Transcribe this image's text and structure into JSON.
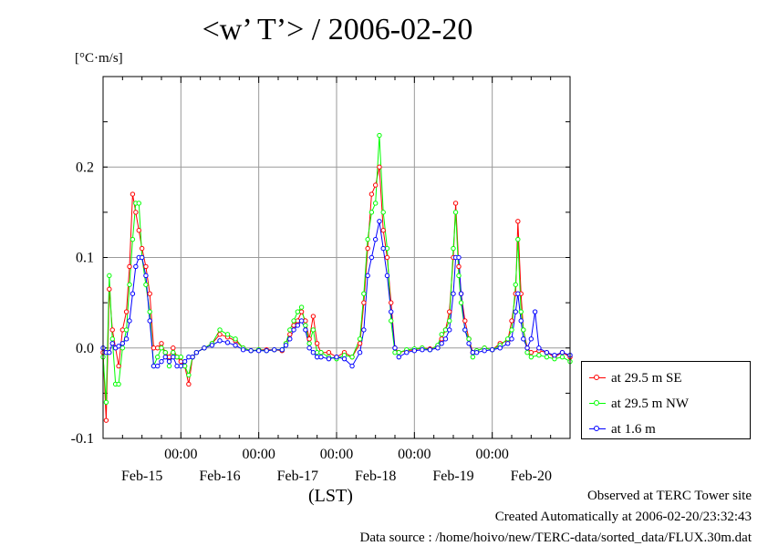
{
  "chart_data": {
    "type": "line",
    "title": "<w’ T’> / 2006-02-20",
    "ylabel": "[°C·m/s]",
    "xlabel": "(LST)",
    "ylim": [
      -0.1,
      0.3
    ],
    "yticks": [
      -0.1,
      0.0,
      0.1,
      0.2
    ],
    "ytick_labels": [
      "-0.1",
      "0.0",
      "0.1",
      "0.2"
    ],
    "xlim_days": [
      0,
      6
    ],
    "xticks_days": [
      1,
      2,
      3,
      4,
      5
    ],
    "xtick_time_labels": [
      "00:00",
      "00:00",
      "00:00",
      "00:00",
      "00:00"
    ],
    "xtick_date_labels": [
      "Feb-15",
      "Feb-16",
      "Feb-17",
      "Feb-18",
      "Feb-19",
      "Feb-20"
    ],
    "grid": true,
    "legend_position": "right",
    "series": [
      {
        "name": "at 29.5 m SE",
        "color": "#ff0000",
        "points": [
          [
            0.0,
            -0.005
          ],
          [
            0.04,
            -0.08
          ],
          [
            0.08,
            0.065
          ],
          [
            0.12,
            0.02
          ],
          [
            0.16,
            0.0
          ],
          [
            0.2,
            -0.02
          ],
          [
            0.25,
            0.02
          ],
          [
            0.3,
            0.04
          ],
          [
            0.34,
            0.09
          ],
          [
            0.38,
            0.17
          ],
          [
            0.42,
            0.15
          ],
          [
            0.46,
            0.13
          ],
          [
            0.5,
            0.11
          ],
          [
            0.55,
            0.09
          ],
          [
            0.6,
            0.06
          ],
          [
            0.65,
            0.0
          ],
          [
            0.7,
            0.0
          ],
          [
            0.75,
            0.005
          ],
          [
            0.8,
            -0.005
          ],
          [
            0.85,
            -0.01
          ],
          [
            0.9,
            0.0
          ],
          [
            0.95,
            -0.01
          ],
          [
            1.0,
            -0.015
          ],
          [
            1.05,
            -0.02
          ],
          [
            1.1,
            -0.04
          ],
          [
            1.15,
            -0.01
          ],
          [
            1.2,
            -0.005
          ],
          [
            1.3,
            0.0
          ],
          [
            1.4,
            0.005
          ],
          [
            1.5,
            0.015
          ],
          [
            1.6,
            0.012
          ],
          [
            1.7,
            0.008
          ],
          [
            1.8,
            0.0
          ],
          [
            1.9,
            -0.003
          ],
          [
            2.0,
            -0.002
          ],
          [
            2.1,
            -0.002
          ],
          [
            2.2,
            -0.002
          ],
          [
            2.3,
            -0.003
          ],
          [
            2.35,
            0.005
          ],
          [
            2.4,
            0.015
          ],
          [
            2.45,
            0.025
          ],
          [
            2.5,
            0.03
          ],
          [
            2.55,
            0.04
          ],
          [
            2.6,
            0.03
          ],
          [
            2.65,
            0.01
          ],
          [
            2.7,
            0.035
          ],
          [
            2.75,
            0.005
          ],
          [
            2.8,
            -0.005
          ],
          [
            2.9,
            -0.005
          ],
          [
            3.0,
            -0.01
          ],
          [
            3.1,
            -0.005
          ],
          [
            3.2,
            -0.01
          ],
          [
            3.3,
            0.005
          ],
          [
            3.35,
            0.05
          ],
          [
            3.4,
            0.11
          ],
          [
            3.45,
            0.17
          ],
          [
            3.5,
            0.18
          ],
          [
            3.55,
            0.2
          ],
          [
            3.6,
            0.13
          ],
          [
            3.65,
            0.1
          ],
          [
            3.7,
            0.05
          ],
          [
            3.75,
            0.0
          ],
          [
            3.8,
            -0.005
          ],
          [
            3.9,
            -0.003
          ],
          [
            4.0,
            -0.002
          ],
          [
            4.1,
            0.0
          ],
          [
            4.2,
            -0.001
          ],
          [
            4.3,
            0.002
          ],
          [
            4.35,
            0.01
          ],
          [
            4.4,
            0.02
          ],
          [
            4.45,
            0.04
          ],
          [
            4.5,
            0.1
          ],
          [
            4.53,
            0.16
          ],
          [
            4.57,
            0.09
          ],
          [
            4.6,
            0.06
          ],
          [
            4.65,
            0.03
          ],
          [
            4.7,
            0.01
          ],
          [
            4.75,
            -0.005
          ],
          [
            4.8,
            -0.003
          ],
          [
            4.9,
            0.0
          ],
          [
            5.0,
            -0.002
          ],
          [
            5.1,
            0.005
          ],
          [
            5.2,
            0.008
          ],
          [
            5.25,
            0.03
          ],
          [
            5.3,
            0.06
          ],
          [
            5.33,
            0.14
          ],
          [
            5.37,
            0.06
          ],
          [
            5.4,
            0.02
          ],
          [
            5.45,
            0.0
          ],
          [
            5.5,
            -0.005
          ],
          [
            5.6,
            -0.003
          ],
          [
            5.7,
            -0.005
          ],
          [
            5.8,
            -0.01
          ],
          [
            5.9,
            -0.005
          ],
          [
            6.0,
            -0.01
          ]
        ]
      },
      {
        "name": "at 29.5 m NW",
        "color": "#00ff00",
        "points": [
          [
            0.0,
            -0.01
          ],
          [
            0.04,
            -0.06
          ],
          [
            0.08,
            0.08
          ],
          [
            0.12,
            0.01
          ],
          [
            0.16,
            -0.04
          ],
          [
            0.2,
            -0.04
          ],
          [
            0.25,
            0.0
          ],
          [
            0.3,
            0.02
          ],
          [
            0.34,
            0.07
          ],
          [
            0.38,
            0.12
          ],
          [
            0.42,
            0.16
          ],
          [
            0.46,
            0.16
          ],
          [
            0.5,
            0.1
          ],
          [
            0.55,
            0.07
          ],
          [
            0.6,
            0.04
          ],
          [
            0.65,
            -0.02
          ],
          [
            0.7,
            -0.01
          ],
          [
            0.75,
            0.0
          ],
          [
            0.8,
            -0.005
          ],
          [
            0.85,
            -0.02
          ],
          [
            0.9,
            -0.005
          ],
          [
            0.95,
            -0.01
          ],
          [
            1.0,
            -0.01
          ],
          [
            1.05,
            -0.02
          ],
          [
            1.1,
            -0.03
          ],
          [
            1.15,
            -0.01
          ],
          [
            1.2,
            -0.005
          ],
          [
            1.3,
            0.0
          ],
          [
            1.4,
            0.005
          ],
          [
            1.5,
            0.02
          ],
          [
            1.6,
            0.015
          ],
          [
            1.7,
            0.01
          ],
          [
            1.8,
            0.0
          ],
          [
            1.9,
            -0.003
          ],
          [
            2.0,
            -0.002
          ],
          [
            2.1,
            -0.003
          ],
          [
            2.2,
            -0.002
          ],
          [
            2.3,
            -0.002
          ],
          [
            2.35,
            0.005
          ],
          [
            2.4,
            0.02
          ],
          [
            2.45,
            0.03
          ],
          [
            2.5,
            0.04
          ],
          [
            2.55,
            0.045
          ],
          [
            2.6,
            0.025
          ],
          [
            2.65,
            0.005
          ],
          [
            2.7,
            0.02
          ],
          [
            2.75,
            -0.005
          ],
          [
            2.8,
            -0.005
          ],
          [
            2.9,
            -0.01
          ],
          [
            3.0,
            -0.012
          ],
          [
            3.1,
            -0.008
          ],
          [
            3.2,
            -0.01
          ],
          [
            3.3,
            0.01
          ],
          [
            3.35,
            0.06
          ],
          [
            3.4,
            0.12
          ],
          [
            3.45,
            0.15
          ],
          [
            3.5,
            0.16
          ],
          [
            3.55,
            0.235
          ],
          [
            3.6,
            0.15
          ],
          [
            3.65,
            0.11
          ],
          [
            3.7,
            0.03
          ],
          [
            3.75,
            -0.005
          ],
          [
            3.8,
            -0.005
          ],
          [
            3.9,
            -0.002
          ],
          [
            4.0,
            -0.001
          ],
          [
            4.1,
            0.0
          ],
          [
            4.2,
            -0.002
          ],
          [
            4.3,
            0.003
          ],
          [
            4.35,
            0.015
          ],
          [
            4.4,
            0.02
          ],
          [
            4.45,
            0.03
          ],
          [
            4.5,
            0.11
          ],
          [
            4.53,
            0.15
          ],
          [
            4.57,
            0.08
          ],
          [
            4.6,
            0.05
          ],
          [
            4.65,
            0.02
          ],
          [
            4.7,
            0.01
          ],
          [
            4.75,
            -0.01
          ],
          [
            4.8,
            -0.003
          ],
          [
            4.9,
            0.0
          ],
          [
            5.0,
            -0.002
          ],
          [
            5.1,
            0.003
          ],
          [
            5.2,
            0.01
          ],
          [
            5.25,
            0.02
          ],
          [
            5.3,
            0.07
          ],
          [
            5.33,
            0.12
          ],
          [
            5.37,
            0.04
          ],
          [
            5.4,
            0.02
          ],
          [
            5.45,
            -0.005
          ],
          [
            5.5,
            -0.01
          ],
          [
            5.6,
            -0.008
          ],
          [
            5.7,
            -0.01
          ],
          [
            5.8,
            -0.012
          ],
          [
            5.9,
            -0.01
          ],
          [
            6.0,
            -0.015
          ]
        ]
      },
      {
        "name": "at 1.6 m",
        "color": "#0000ff",
        "points": [
          [
            0.0,
            0.0
          ],
          [
            0.04,
            -0.005
          ],
          [
            0.08,
            -0.005
          ],
          [
            0.12,
            0.005
          ],
          [
            0.16,
            0.0
          ],
          [
            0.2,
            0.002
          ],
          [
            0.25,
            0.005
          ],
          [
            0.3,
            0.01
          ],
          [
            0.34,
            0.03
          ],
          [
            0.38,
            0.06
          ],
          [
            0.42,
            0.09
          ],
          [
            0.46,
            0.1
          ],
          [
            0.5,
            0.1
          ],
          [
            0.55,
            0.08
          ],
          [
            0.6,
            0.03
          ],
          [
            0.65,
            -0.02
          ],
          [
            0.7,
            -0.02
          ],
          [
            0.75,
            -0.015
          ],
          [
            0.8,
            -0.01
          ],
          [
            0.85,
            -0.015
          ],
          [
            0.9,
            -0.01
          ],
          [
            0.95,
            -0.02
          ],
          [
            1.0,
            -0.02
          ],
          [
            1.05,
            -0.015
          ],
          [
            1.1,
            -0.01
          ],
          [
            1.15,
            -0.01
          ],
          [
            1.2,
            -0.005
          ],
          [
            1.3,
            0.0
          ],
          [
            1.4,
            0.003
          ],
          [
            1.5,
            0.008
          ],
          [
            1.6,
            0.006
          ],
          [
            1.7,
            0.003
          ],
          [
            1.8,
            -0.002
          ],
          [
            1.9,
            -0.003
          ],
          [
            2.0,
            -0.003
          ],
          [
            2.1,
            -0.003
          ],
          [
            2.2,
            -0.002
          ],
          [
            2.3,
            -0.002
          ],
          [
            2.35,
            0.003
          ],
          [
            2.4,
            0.01
          ],
          [
            2.45,
            0.02
          ],
          [
            2.5,
            0.025
          ],
          [
            2.55,
            0.03
          ],
          [
            2.6,
            0.02
          ],
          [
            2.65,
            0.0
          ],
          [
            2.7,
            -0.005
          ],
          [
            2.75,
            -0.01
          ],
          [
            2.8,
            -0.01
          ],
          [
            2.9,
            -0.012
          ],
          [
            3.0,
            -0.01
          ],
          [
            3.1,
            -0.012
          ],
          [
            3.2,
            -0.02
          ],
          [
            3.3,
            -0.005
          ],
          [
            3.35,
            0.02
          ],
          [
            3.4,
            0.08
          ],
          [
            3.45,
            0.1
          ],
          [
            3.5,
            0.12
          ],
          [
            3.55,
            0.14
          ],
          [
            3.6,
            0.11
          ],
          [
            3.65,
            0.08
          ],
          [
            3.7,
            0.04
          ],
          [
            3.75,
            0.0
          ],
          [
            3.8,
            -0.01
          ],
          [
            3.9,
            -0.005
          ],
          [
            4.0,
            -0.003
          ],
          [
            4.1,
            -0.002
          ],
          [
            4.2,
            -0.002
          ],
          [
            4.3,
            0.0
          ],
          [
            4.35,
            0.005
          ],
          [
            4.4,
            0.01
          ],
          [
            4.45,
            0.02
          ],
          [
            4.5,
            0.06
          ],
          [
            4.53,
            0.1
          ],
          [
            4.57,
            0.1
          ],
          [
            4.6,
            0.06
          ],
          [
            4.65,
            0.02
          ],
          [
            4.7,
            0.005
          ],
          [
            4.75,
            -0.005
          ],
          [
            4.8,
            -0.005
          ],
          [
            4.9,
            -0.003
          ],
          [
            5.0,
            -0.002
          ],
          [
            5.1,
            0.0
          ],
          [
            5.2,
            0.005
          ],
          [
            5.25,
            0.01
          ],
          [
            5.3,
            0.04
          ],
          [
            5.33,
            0.06
          ],
          [
            5.37,
            0.03
          ],
          [
            5.4,
            0.01
          ],
          [
            5.45,
            0.0
          ],
          [
            5.5,
            0.01
          ],
          [
            5.55,
            0.04
          ],
          [
            5.6,
            0.0
          ],
          [
            5.7,
            -0.005
          ],
          [
            5.8,
            -0.008
          ],
          [
            5.9,
            -0.005
          ],
          [
            6.0,
            -0.008
          ]
        ]
      }
    ]
  },
  "footer": {
    "line1": "Observed at TERC Tower site",
    "line2": "Created Automatically at 2006-02-20/23:32:43",
    "line3": "Data source : /home/hoivo/new/TERC-data/sorted_data/FLUX.30m.dat"
  }
}
